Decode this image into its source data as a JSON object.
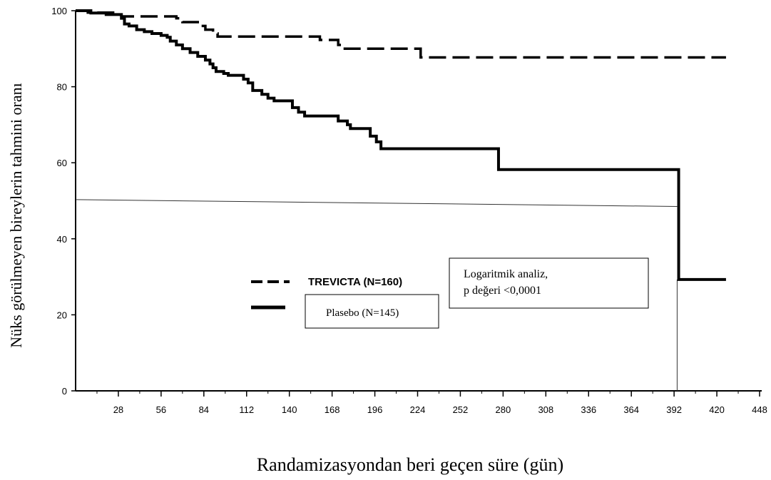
{
  "chart_data": {
    "type": "line",
    "title": "",
    "xlabel": "Randamizasyondan beri geçen süre (gün)",
    "ylabel": "Nüks görülmeyen bireylerin tahmini oranı",
    "xlim": [
      0,
      448
    ],
    "ylim": [
      0,
      100
    ],
    "x_ticks": [
      28,
      56,
      84,
      112,
      140,
      168,
      196,
      224,
      252,
      280,
      308,
      336,
      364,
      392,
      420,
      448
    ],
    "y_ticks": [
      0,
      20,
      40,
      60,
      80,
      100
    ],
    "grid": false,
    "series": [
      {
        "name": "TREVICTA (N=160)",
        "style": "dashed",
        "color": "#000000",
        "step": true,
        "points": [
          [
            0,
            100
          ],
          [
            8,
            99.5
          ],
          [
            28,
            99
          ],
          [
            30,
            98.5
          ],
          [
            66,
            98
          ],
          [
            70,
            97
          ],
          [
            80,
            96
          ],
          [
            85,
            95
          ],
          [
            90,
            94
          ],
          [
            93,
            93.2
          ],
          [
            153,
            93.2
          ],
          [
            160,
            92.3
          ],
          [
            172,
            91
          ],
          [
            175,
            90
          ],
          [
            225,
            90
          ],
          [
            226,
            87.7
          ],
          [
            426,
            87.7
          ]
        ]
      },
      {
        "name": "Plasebo (N=145)",
        "style": "solid",
        "color": "#000000",
        "step": true,
        "points": [
          [
            0,
            100
          ],
          [
            10,
            99.4
          ],
          [
            20,
            99
          ],
          [
            30,
            98
          ],
          [
            32,
            96.5
          ],
          [
            35,
            96
          ],
          [
            40,
            95
          ],
          [
            45,
            94.5
          ],
          [
            50,
            94
          ],
          [
            56,
            93.5
          ],
          [
            60,
            93
          ],
          [
            62,
            92
          ],
          [
            66,
            91
          ],
          [
            70,
            90
          ],
          [
            75,
            89
          ],
          [
            80,
            88
          ],
          [
            85,
            87
          ],
          [
            88,
            86
          ],
          [
            90,
            85
          ],
          [
            92,
            84
          ],
          [
            97,
            83.5
          ],
          [
            100,
            83
          ],
          [
            110,
            82
          ],
          [
            113,
            81
          ],
          [
            116,
            79
          ],
          [
            122,
            78
          ],
          [
            126,
            77
          ],
          [
            130,
            76.3
          ],
          [
            140,
            76.3
          ],
          [
            142,
            74.5
          ],
          [
            146,
            73.3
          ],
          [
            150,
            72.3
          ],
          [
            170,
            72.3
          ],
          [
            172,
            71
          ],
          [
            178,
            70
          ],
          [
            180,
            69
          ],
          [
            190,
            69
          ],
          [
            193,
            67
          ],
          [
            197,
            65.5
          ],
          [
            200,
            63.7
          ],
          [
            275,
            63.7
          ],
          [
            277,
            58.2
          ],
          [
            394,
            58.2
          ],
          [
            395,
            29.3
          ],
          [
            426,
            29.3
          ]
        ]
      }
    ],
    "legend": "center-left",
    "annotations": [
      {
        "text": "Logaritmik analiz,",
        "position": "center-right"
      },
      {
        "text": "p değeri <0,0001",
        "position": "center-right"
      }
    ],
    "reference_line": {
      "from": [
        0,
        50.3
      ],
      "to": [
        394,
        48.5
      ],
      "style": "thin"
    },
    "vertical_reference": {
      "x": 394,
      "y_from": 0,
      "y_to": 29.3
    }
  }
}
